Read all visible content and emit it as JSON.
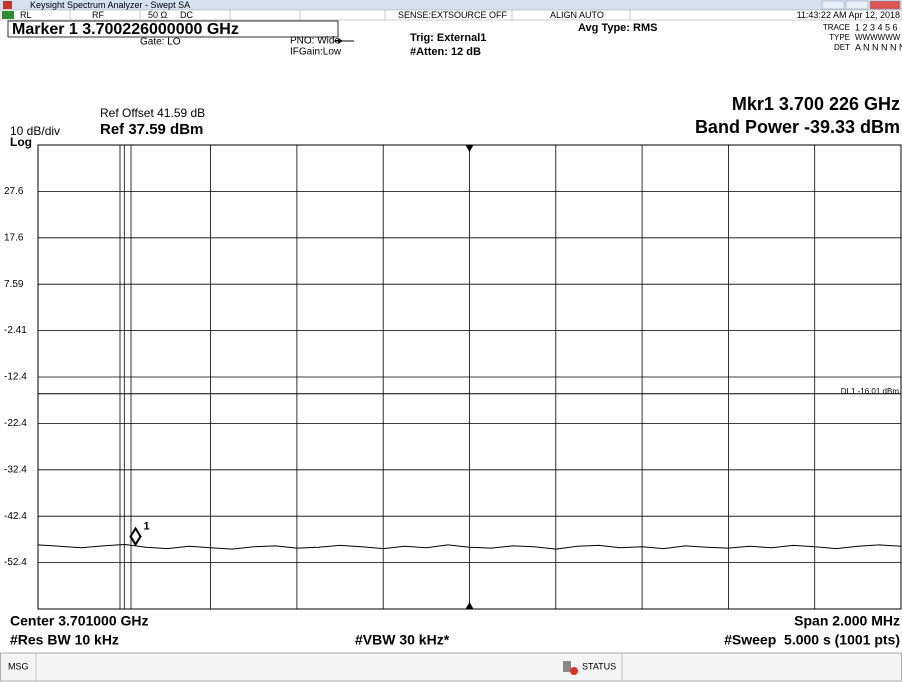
{
  "window": {
    "title": "Keysight Spectrum Analyzer - Swept SA"
  },
  "status_bar": [
    "RL",
    "RF",
    "50 Ω",
    "DC",
    "SENSE:EXT",
    "SOURCE OFF",
    "ALIGN AUTO",
    "11:43:22 AM Apr 12, 2018"
  ],
  "header": {
    "marker": "Marker 1 3.700226000000 GHz",
    "gate": "Gate: LO",
    "pno": "PNO: Wide",
    "ifgain": "IFGain:Low",
    "trig": "Trig: External1",
    "atten": "#Atten: 12 dB",
    "avg_type": "Avg Type: RMS",
    "trace_label": "TRACE",
    "trace": "1 2 3 4 5 6",
    "type_label": "TYPE",
    "type": "WWWWWW",
    "det_label": "DET",
    "det": "A N N N N N"
  },
  "chart_data": {
    "type": "line",
    "ref_offset": "Ref Offset 41.59 dB",
    "scale": "10 dB/div",
    "ref_level": "Ref 37.59 dBm",
    "scale_type": "Log",
    "marker_readout": "Mkr1 3.700 226 GHz",
    "band_power": "Band Power -39.33 dBm",
    "x": [
      3.7,
      3.70005,
      3.7001,
      3.70015,
      3.7002,
      3.70025,
      3.7003,
      3.70035,
      3.7004,
      3.70045,
      3.7005,
      3.70055,
      3.7006,
      3.70065,
      3.7007,
      3.70075,
      3.7008,
      3.70085,
      3.7009,
      3.70095,
      3.701,
      3.70105,
      3.7011,
      3.70115,
      3.7012,
      3.70125,
      3.7013,
      3.70135,
      3.7014,
      3.70145,
      3.7015,
      3.70155,
      3.7016,
      3.70165,
      3.7017,
      3.70175,
      3.7018,
      3.70185,
      3.7019,
      3.70195,
      3.702
    ],
    "series": [
      {
        "color": "#000000",
        "values": [
          -48.6,
          -48.9,
          -49.2,
          -48.8,
          -48.5,
          -49.1,
          -49.4,
          -48.9,
          -49.2,
          -49.5,
          -49.0,
          -48.8,
          -49.3,
          -49.1,
          -48.7,
          -49.0,
          -49.4,
          -48.9,
          -49.2,
          -48.6,
          -49.1,
          -49.3,
          -48.8,
          -49.0,
          -49.5,
          -48.9,
          -48.7,
          -49.2,
          -49.0,
          -49.4,
          -48.8,
          -49.1,
          -49.3,
          -48.9,
          -49.2,
          -48.7,
          -49.0,
          -49.4,
          -48.9,
          -48.6,
          -48.9
        ]
      }
    ],
    "xlim": [
      3.7,
      3.702
    ],
    "ylim": [
      -62.41,
      37.59
    ],
    "yticks": [
      {
        "value": 27.59,
        "label": "27.6"
      },
      {
        "value": 17.59,
        "label": "17.6"
      },
      7.59,
      -2.41,
      {
        "value": -12.41,
        "label": "-12.4"
      },
      {
        "value": -22.41,
        "label": "-22.4"
      },
      {
        "value": -32.41,
        "label": "-32.4"
      },
      {
        "value": -42.41,
        "label": "-42.4"
      },
      {
        "value": -52.41,
        "label": "-52.4"
      }
    ],
    "grid": true,
    "display_line": {
      "label": "DL1 -16.01 dBm",
      "value": -16.01,
      "color": "#000000"
    },
    "marker": {
      "label": "1",
      "x": 3.700226,
      "y": -48.5
    }
  },
  "footer": {
    "center": "Center 3.701000 GHz",
    "span": "Span 2.000 MHz",
    "res_bw": "#Res BW 10 kHz",
    "vbw": "#VBW 30 kHz*",
    "sweep": "#Sweep  5.000 s (1001 pts)"
  },
  "bottom_bar": {
    "msg": "MSG",
    "status": "STATUS"
  }
}
